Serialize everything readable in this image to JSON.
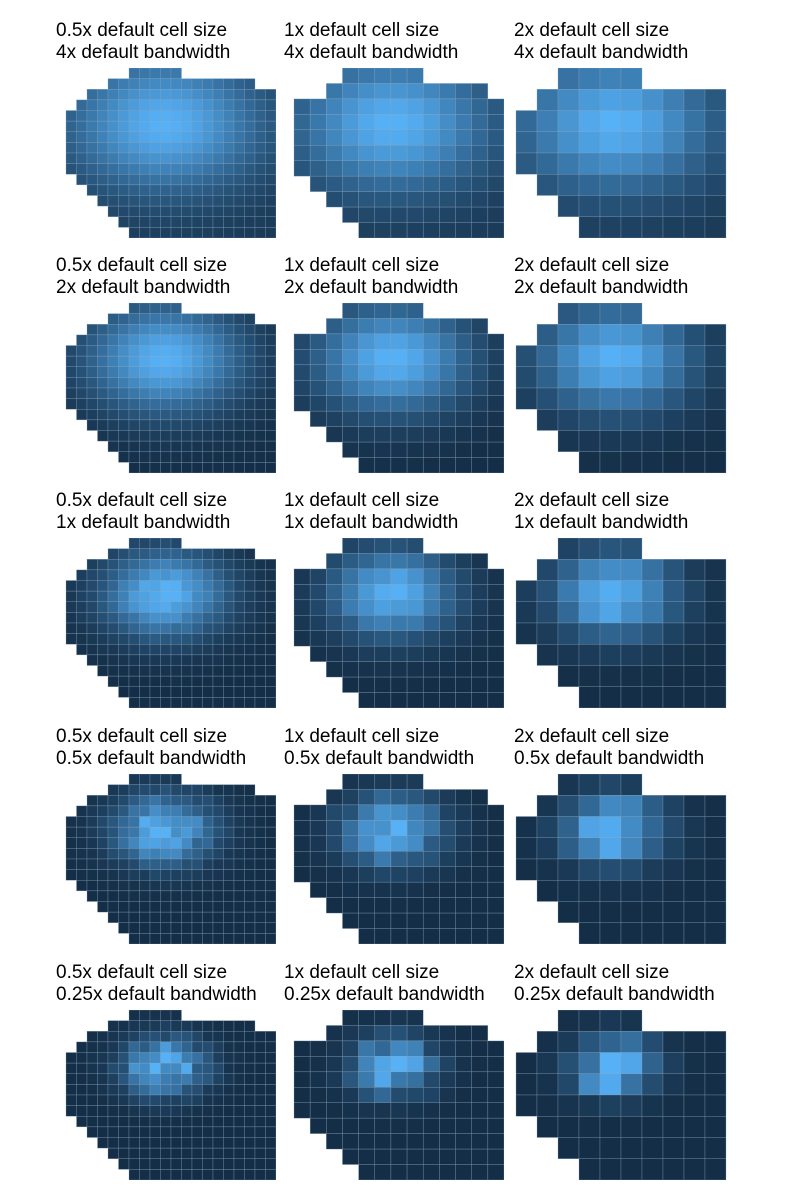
{
  "chart_data": {
    "type": "heatmap",
    "layout": {
      "rows": 5,
      "columns": 3
    },
    "color_scale": {
      "low": "#132b43",
      "high": "#56b1f7"
    },
    "grid_line_color": "#8aa3ba",
    "panels": [
      {
        "line1": "0.5x default cell size",
        "line2": "4x default bandwidth",
        "cell_factor": 0.5,
        "bandwidth_factor": 4
      },
      {
        "line1": "1x default cell size",
        "line2": "4x default bandwidth",
        "cell_factor": 1,
        "bandwidth_factor": 4
      },
      {
        "line1": "2x default cell size",
        "line2": "4x default bandwidth",
        "cell_factor": 2,
        "bandwidth_factor": 4
      },
      {
        "line1": "0.5x default cell size",
        "line2": "2x default bandwidth",
        "cell_factor": 0.5,
        "bandwidth_factor": 2
      },
      {
        "line1": "1x default cell size",
        "line2": "2x default bandwidth",
        "cell_factor": 1,
        "bandwidth_factor": 2
      },
      {
        "line1": "2x default cell size",
        "line2": "2x default bandwidth",
        "cell_factor": 2,
        "bandwidth_factor": 2
      },
      {
        "line1": "0.5x default cell size",
        "line2": "1x default bandwidth",
        "cell_factor": 0.5,
        "bandwidth_factor": 1
      },
      {
        "line1": "1x default cell size",
        "line2": "1x default bandwidth",
        "cell_factor": 1,
        "bandwidth_factor": 1
      },
      {
        "line1": "2x default cell size",
        "line2": "1x default bandwidth",
        "cell_factor": 2,
        "bandwidth_factor": 1
      },
      {
        "line1": "0.5x default cell size",
        "line2": "0.5x default bandwidth",
        "cell_factor": 0.5,
        "bandwidth_factor": 0.5
      },
      {
        "line1": "1x default cell size",
        "line2": "0.5x default bandwidth",
        "cell_factor": 1,
        "bandwidth_factor": 0.5
      },
      {
        "line1": "2x default cell size",
        "line2": "0.5x default bandwidth",
        "cell_factor": 2,
        "bandwidth_factor": 0.5
      },
      {
        "line1": "0.5x default cell size",
        "line2": "0.25x default bandwidth",
        "cell_factor": 0.5,
        "bandwidth_factor": 0.25
      },
      {
        "line1": "1x default cell size",
        "line2": "0.25x default bandwidth",
        "cell_factor": 1,
        "bandwidth_factor": 0.25
      },
      {
        "line1": "2x default cell size",
        "line2": "0.25x default bandwidth",
        "cell_factor": 2,
        "bandwidth_factor": 0.25
      }
    ]
  }
}
